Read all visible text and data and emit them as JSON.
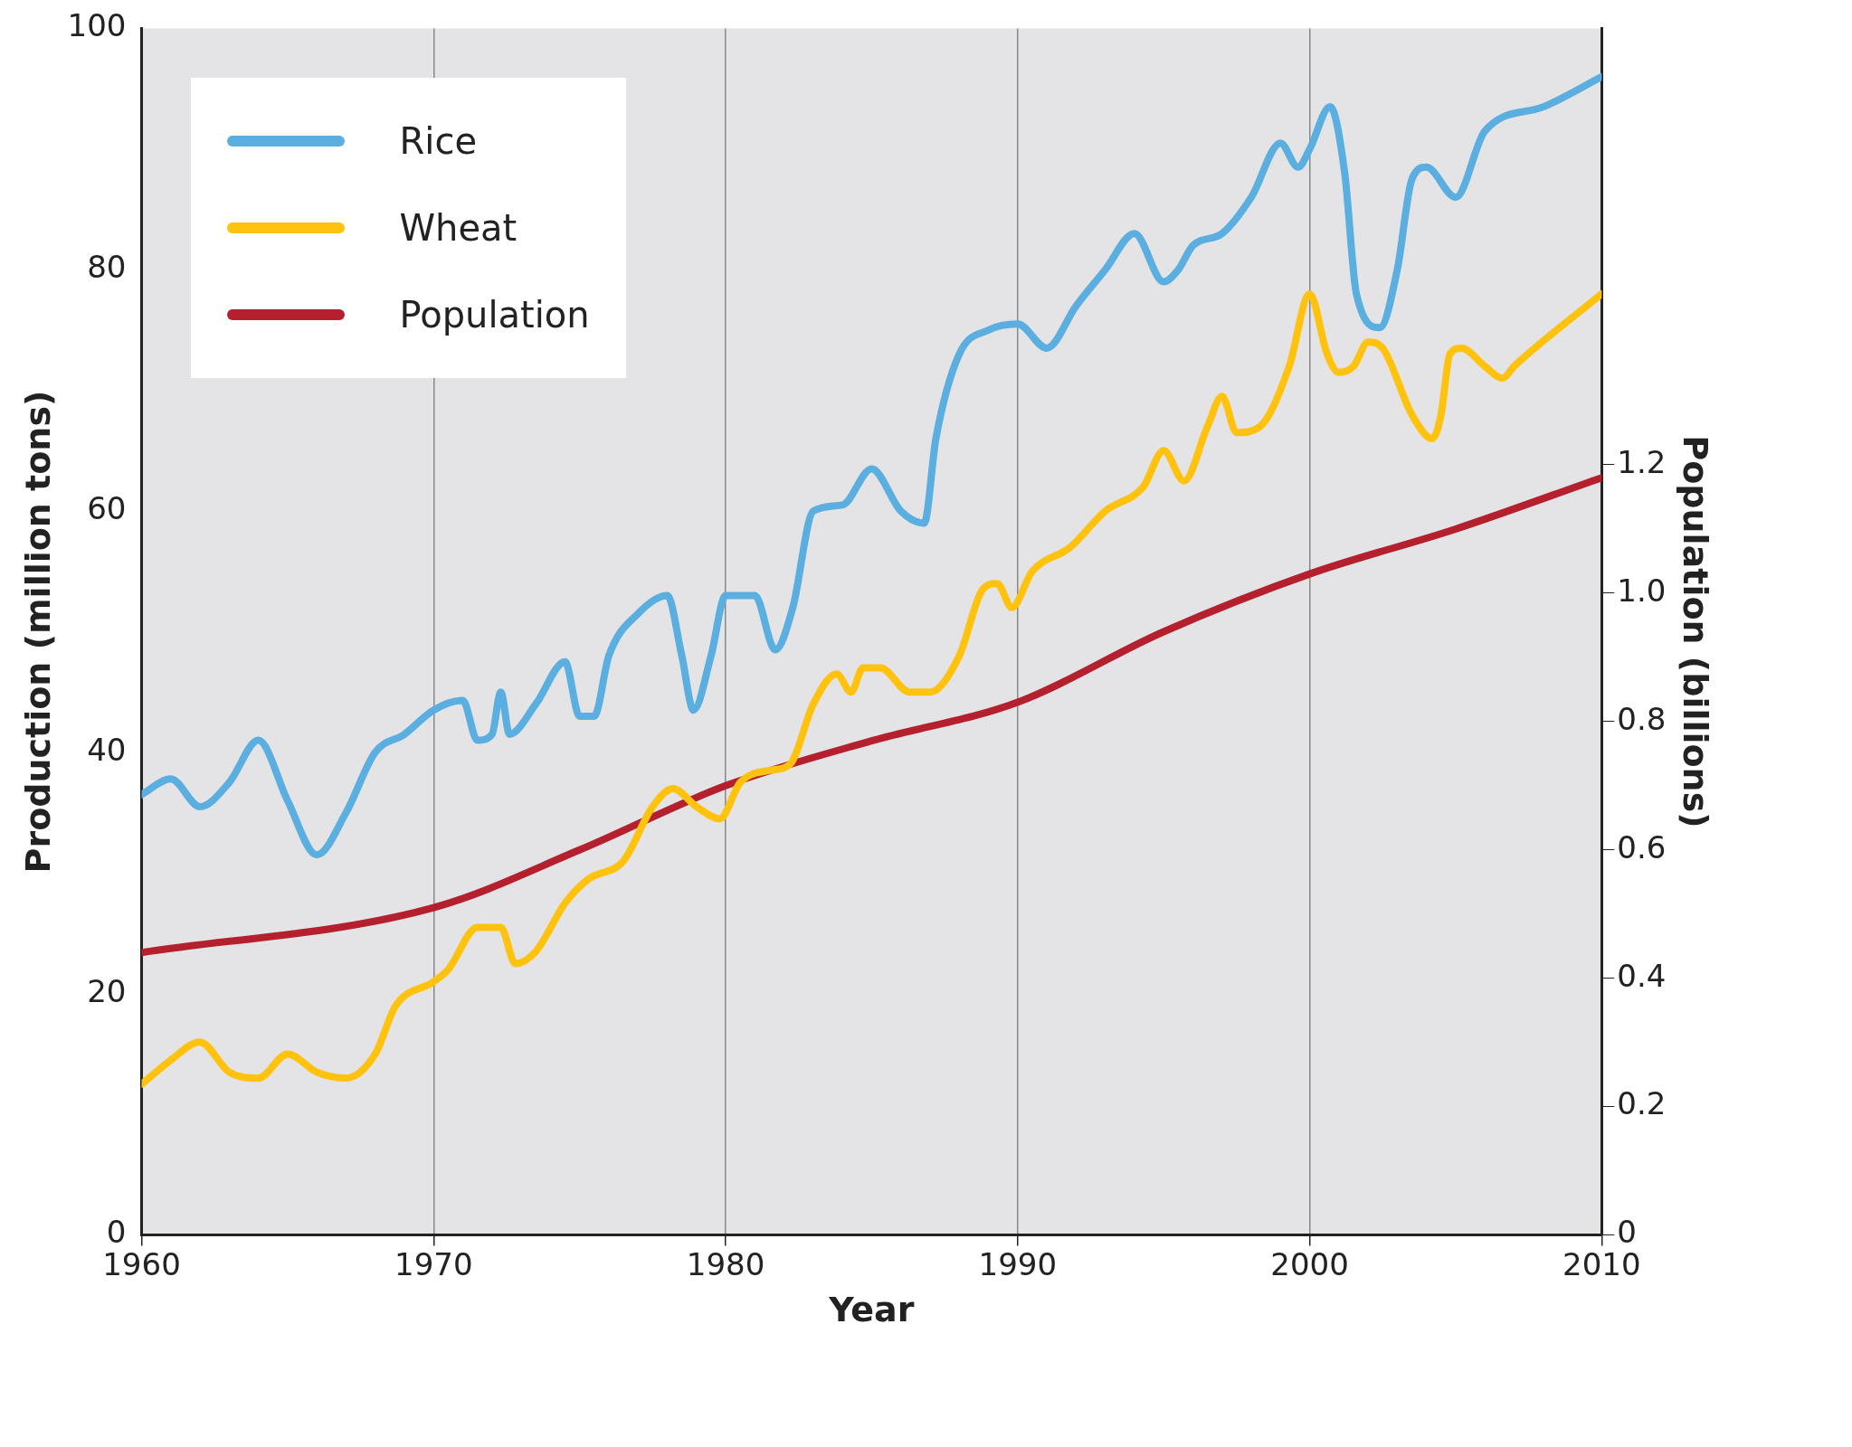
{
  "chart_data": {
    "type": "line",
    "xlabel": "Year",
    "ylabel": "Production (million tons)",
    "y2label": "Population (billions)",
    "xlim": [
      1960,
      2010
    ],
    "xticks": [
      1960,
      1970,
      1980,
      1990,
      2000,
      2010
    ],
    "ylim": [
      0,
      100
    ],
    "yticks": [
      0,
      20,
      40,
      60,
      80,
      100
    ],
    "y2lim": [
      0,
      1.88
    ],
    "y2ticks": [
      0,
      0.2,
      0.4,
      0.6,
      0.8,
      {
        "value": 1,
        "label": "1.0"
      },
      1.2
    ],
    "grid": "x",
    "legend": "top left",
    "marker": "none",
    "line_style": "solid",
    "series": [
      {
        "name": "Rice",
        "color": "#5aafe0",
        "x": [
          1960,
          1961,
          1962,
          1963,
          1964,
          1965,
          1966,
          1967,
          1968,
          1969,
          1970,
          1971,
          1971.5,
          1972,
          1972.3,
          1972.6,
          1973.5,
          1974.5,
          1975,
          1975.5,
          1976,
          1977,
          1978,
          1978.5,
          1978.9,
          1979.5,
          1980,
          1981,
          1981.7,
          1982.3,
          1983,
          1984,
          1985,
          1986,
          1986.8,
          1987.2,
          1988,
          1989,
          1990,
          1991,
          1992,
          1993,
          1994,
          1995,
          1995.5,
          1996,
          1997,
          1998,
          1999,
          1999.6,
          2000,
          2000.7,
          2001.2,
          2001.6,
          2002.4,
          2003,
          2003.5,
          2004,
          2005,
          2006,
          2008,
          2010
        ],
        "values": [
          36.5,
          37.8,
          35.5,
          37.5,
          41,
          36,
          31.5,
          35,
          40,
          41.5,
          43.5,
          44.3,
          41,
          41.5,
          45,
          41.5,
          44,
          47.5,
          43,
          43,
          48,
          51.5,
          53,
          48,
          43.5,
          48,
          53,
          53,
          48.5,
          52,
          60,
          60.5,
          63.5,
          60,
          59,
          66,
          73,
          75,
          75.5,
          73.5,
          77,
          80,
          83,
          79,
          80,
          82,
          83,
          86,
          90.5,
          88.5,
          90,
          93.5,
          88,
          78,
          75.2,
          80,
          87.5,
          88.5,
          86,
          91.5,
          93.5,
          96
        ]
      },
      {
        "name": "Wheat",
        "color": "#ffc20e",
        "x": [
          1960,
          1961,
          1962,
          1963,
          1964,
          1965,
          1966,
          1967,
          1968,
          1968.7,
          1970,
          1970.5,
          1971.5,
          1972.3,
          1972.8,
          1973.5,
          1974.5,
          1975.3,
          1976.5,
          1977.5,
          1978.2,
          1979,
          1979.8,
          1980.5,
          1981.5,
          1982.2,
          1983,
          1983.8,
          1984.3,
          1984.7,
          1985.3,
          1986.3,
          1987,
          1988,
          1988.8,
          1989.3,
          1989.8,
          1990.5,
          1991.8,
          1993,
          1994.3,
          1995,
          1995.7,
          1996.5,
          1997,
          1997.5,
          1998.3,
          1999.3,
          2000,
          2000.6,
          2001,
          2001.5,
          2002,
          2002.5,
          2003.5,
          2004.2,
          2004.5,
          2004.8,
          2005.2,
          2006,
          2006.6,
          2007,
          2010
        ],
        "values": [
          12.5,
          14.5,
          16,
          13.5,
          13,
          15,
          13.5,
          13,
          15,
          19,
          21,
          22,
          25.5,
          25.5,
          22.5,
          23.5,
          27.5,
          29.5,
          31,
          35.5,
          37,
          35.5,
          34.5,
          37.5,
          38.5,
          39,
          44,
          46.5,
          45,
          47,
          47,
          45,
          45,
          48,
          53.5,
          54,
          52,
          55,
          57,
          60,
          62,
          65,
          62.5,
          67,
          69.5,
          66.5,
          67,
          72,
          78,
          73,
          71.5,
          72,
          74,
          73.5,
          68,
          66,
          68,
          73,
          73.5,
          72,
          71,
          72,
          78
        ]
      },
      {
        "name": "Population",
        "color": "#b5202e",
        "axis": "y2",
        "x": [
          1960,
          1970,
          1975,
          1980,
          1985,
          1990,
          1995,
          2000,
          2005,
          2010
        ],
        "values": [
          0.44,
          0.51,
          0.6,
          0.7,
          0.77,
          0.83,
          0.94,
          1.03,
          1.1,
          1.18
        ]
      }
    ]
  }
}
